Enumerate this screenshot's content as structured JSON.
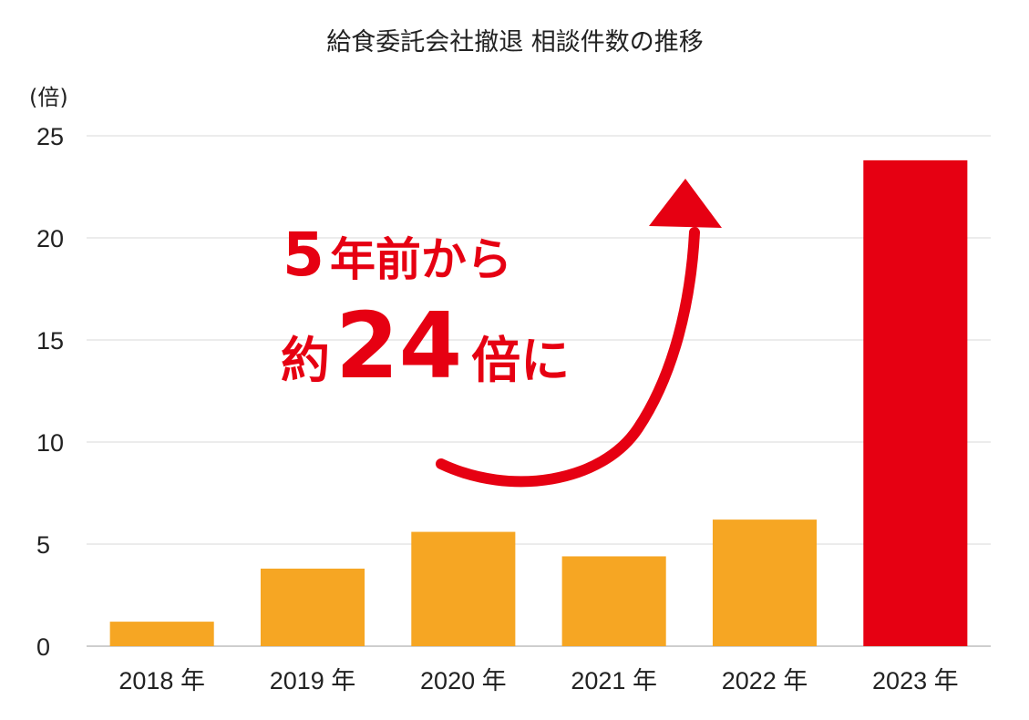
{
  "chart_data": {
    "type": "bar",
    "title": "給食委託会社撤退 相談件数の推移",
    "unit_label": "(倍)",
    "categories": [
      "2018 年",
      "2019 年",
      "2020 年",
      "2021 年",
      "2022 年",
      "2023 年"
    ],
    "values": [
      1.2,
      3.8,
      5.6,
      4.4,
      6.2,
      23.8
    ],
    "ylim": [
      0,
      25
    ],
    "yticks": [
      0,
      5,
      10,
      15,
      20,
      25
    ],
    "grid": true,
    "legend": "none",
    "colors": {
      "bar": "#f6a623",
      "highlight_bar": "#e60012",
      "highlight_label": "#e60012",
      "grid": "#e6e6e6"
    },
    "highlight_index": 5,
    "annotation": {
      "line1_prefix": "5",
      "line1_suffix": "年前から",
      "line2_prefix": "約",
      "line2_number": "24",
      "line2_suffix": "倍に",
      "color": "#e60012"
    }
  }
}
